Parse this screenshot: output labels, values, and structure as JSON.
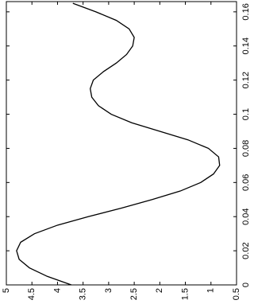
{
  "chart_data": {
    "type": "line",
    "x": [
      0,
      0.005,
      0.01,
      0.015,
      0.02,
      0.025,
      0.03,
      0.035,
      0.04,
      0.045,
      0.05,
      0.055,
      0.06,
      0.065,
      0.07,
      0.075,
      0.08,
      0.085,
      0.09,
      0.095,
      0.1,
      0.105,
      0.11,
      0.115,
      0.12,
      0.125,
      0.13,
      0.135,
      0.14,
      0.145,
      0.15,
      0.155,
      0.16,
      0.165
    ],
    "series": [
      {
        "color": "#000000",
        "values": [
          3.73,
          4.2,
          4.55,
          4.75,
          4.8,
          4.72,
          4.45,
          4.0,
          3.4,
          2.75,
          2.15,
          1.6,
          1.2,
          0.95,
          0.83,
          0.85,
          1.05,
          1.45,
          2.0,
          2.55,
          2.95,
          3.2,
          3.33,
          3.36,
          3.3,
          3.1,
          2.85,
          2.65,
          2.53,
          2.5,
          2.6,
          2.85,
          3.25,
          3.7
        ]
      }
    ],
    "xlim": [
      0,
      0.166
    ],
    "xticks": [
      0,
      0.02,
      0.04,
      0.06,
      0.08,
      0.1,
      0.12,
      0.14,
      0.16
    ],
    "ylim": [
      0.5,
      5
    ],
    "yticks": [
      0.5,
      1,
      1.5,
      2,
      2.5,
      3,
      3.5,
      4,
      4.5,
      5
    ]
  }
}
